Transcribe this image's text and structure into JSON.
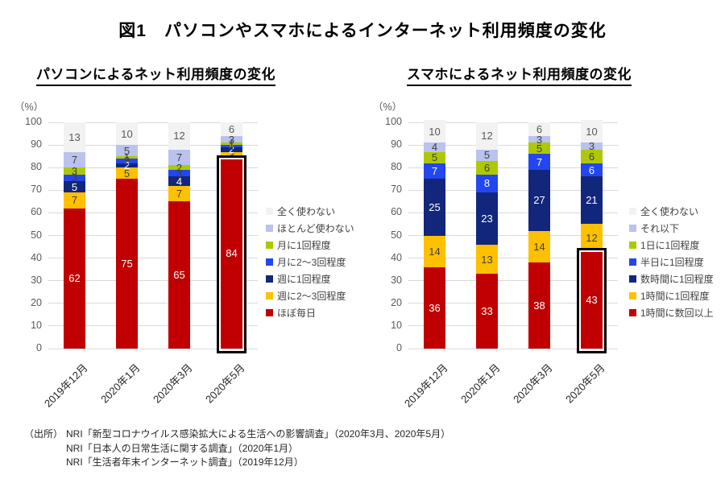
{
  "page": {
    "title": "図1　パソコンやスマホによるインターネット利用頻度の変化"
  },
  "source": {
    "prefix": "（出所）",
    "lines": [
      "NRI「新型コロナウイルス感染拡大による生活への影響調査」（2020年3月、2020年5月）",
      "NRI「日本人の日常生活に関する調査」（2020年1月）",
      "NRI「生活者年末インターネット調査」（2019年12月）"
    ]
  },
  "chart_data": [
    {
      "type": "bar",
      "stacked": true,
      "title": "パソコンによるネット利用頻度の変化",
      "unit_label": "（%）",
      "categories": [
        "2019年12月",
        "2020年1月",
        "2020年3月",
        "2020年5月"
      ],
      "ylim": [
        0,
        100
      ],
      "ytick_step": 10,
      "grid": "horizontal",
      "legend_position": "right",
      "highlight": {
        "category_index": 3,
        "border_color": "#000000"
      },
      "series": [
        {
          "name": "ほぼ毎日",
          "color": "#C00000",
          "label_color": "#FFFFFF",
          "values": [
            62,
            75,
            65,
            84
          ]
        },
        {
          "name": "週に2〜3回程度",
          "color": "#FFC000",
          "label_color": "#404040",
          "values": [
            7,
            5,
            7,
            3
          ]
        },
        {
          "name": "週に1回程度",
          "color": "#12267B",
          "label_color": "#FFFFFF",
          "values": [
            5,
            2,
            4,
            2
          ]
        },
        {
          "name": "月に2〜3回程度",
          "color": "#2346F0",
          "label_color": "#404040",
          "values": [
            3,
            2,
            3,
            1
          ]
        },
        {
          "name": "月に1回程度",
          "color": "#AEC806",
          "label_color": "#404040",
          "values": [
            3,
            1,
            2,
            1
          ]
        },
        {
          "name": "ほとんど使わない",
          "color": "#B9C3EE",
          "label_color": "#404040",
          "values": [
            7,
            5,
            7,
            3
          ]
        },
        {
          "name": "全く使わない",
          "color": "#F2F2F2",
          "label_color": "#595959",
          "values": [
            13,
            10,
            12,
            6
          ]
        }
      ]
    },
    {
      "type": "bar",
      "stacked": true,
      "title": "スマホによるネット利用頻度の変化",
      "unit_label": "（%）",
      "categories": [
        "2019年12月",
        "2020年1月",
        "2020年3月",
        "2020年5月"
      ],
      "ylim": [
        0,
        100
      ],
      "ytick_step": 10,
      "grid": "horizontal",
      "legend_position": "right",
      "highlight": {
        "category_index": 3,
        "border_color": "#000000"
      },
      "series": [
        {
          "name": "1時間に数回以上",
          "color": "#C00000",
          "label_color": "#FFFFFF",
          "values": [
            36,
            33,
            38,
            43
          ]
        },
        {
          "name": "1時間に1回程度",
          "color": "#FFC000",
          "label_color": "#404040",
          "values": [
            14,
            13,
            14,
            12
          ]
        },
        {
          "name": "数時間に1回程度",
          "color": "#12267B",
          "label_color": "#FFFFFF",
          "values": [
            25,
            23,
            27,
            21
          ]
        },
        {
          "name": "半日に1回程度",
          "color": "#2346F0",
          "label_color": "#FFFFFF",
          "values": [
            7,
            8,
            7,
            6
          ]
        },
        {
          "name": "1日に1回程度",
          "color": "#AEC806",
          "label_color": "#404040",
          "values": [
            5,
            6,
            5,
            6
          ]
        },
        {
          "name": "それ以下",
          "color": "#B9C3EE",
          "label_color": "#404040",
          "values": [
            4,
            5,
            3,
            3
          ]
        },
        {
          "name": "全く使わない",
          "color": "#F2F2F2",
          "label_color": "#595959",
          "values": [
            10,
            12,
            6,
            10
          ]
        }
      ]
    }
  ]
}
